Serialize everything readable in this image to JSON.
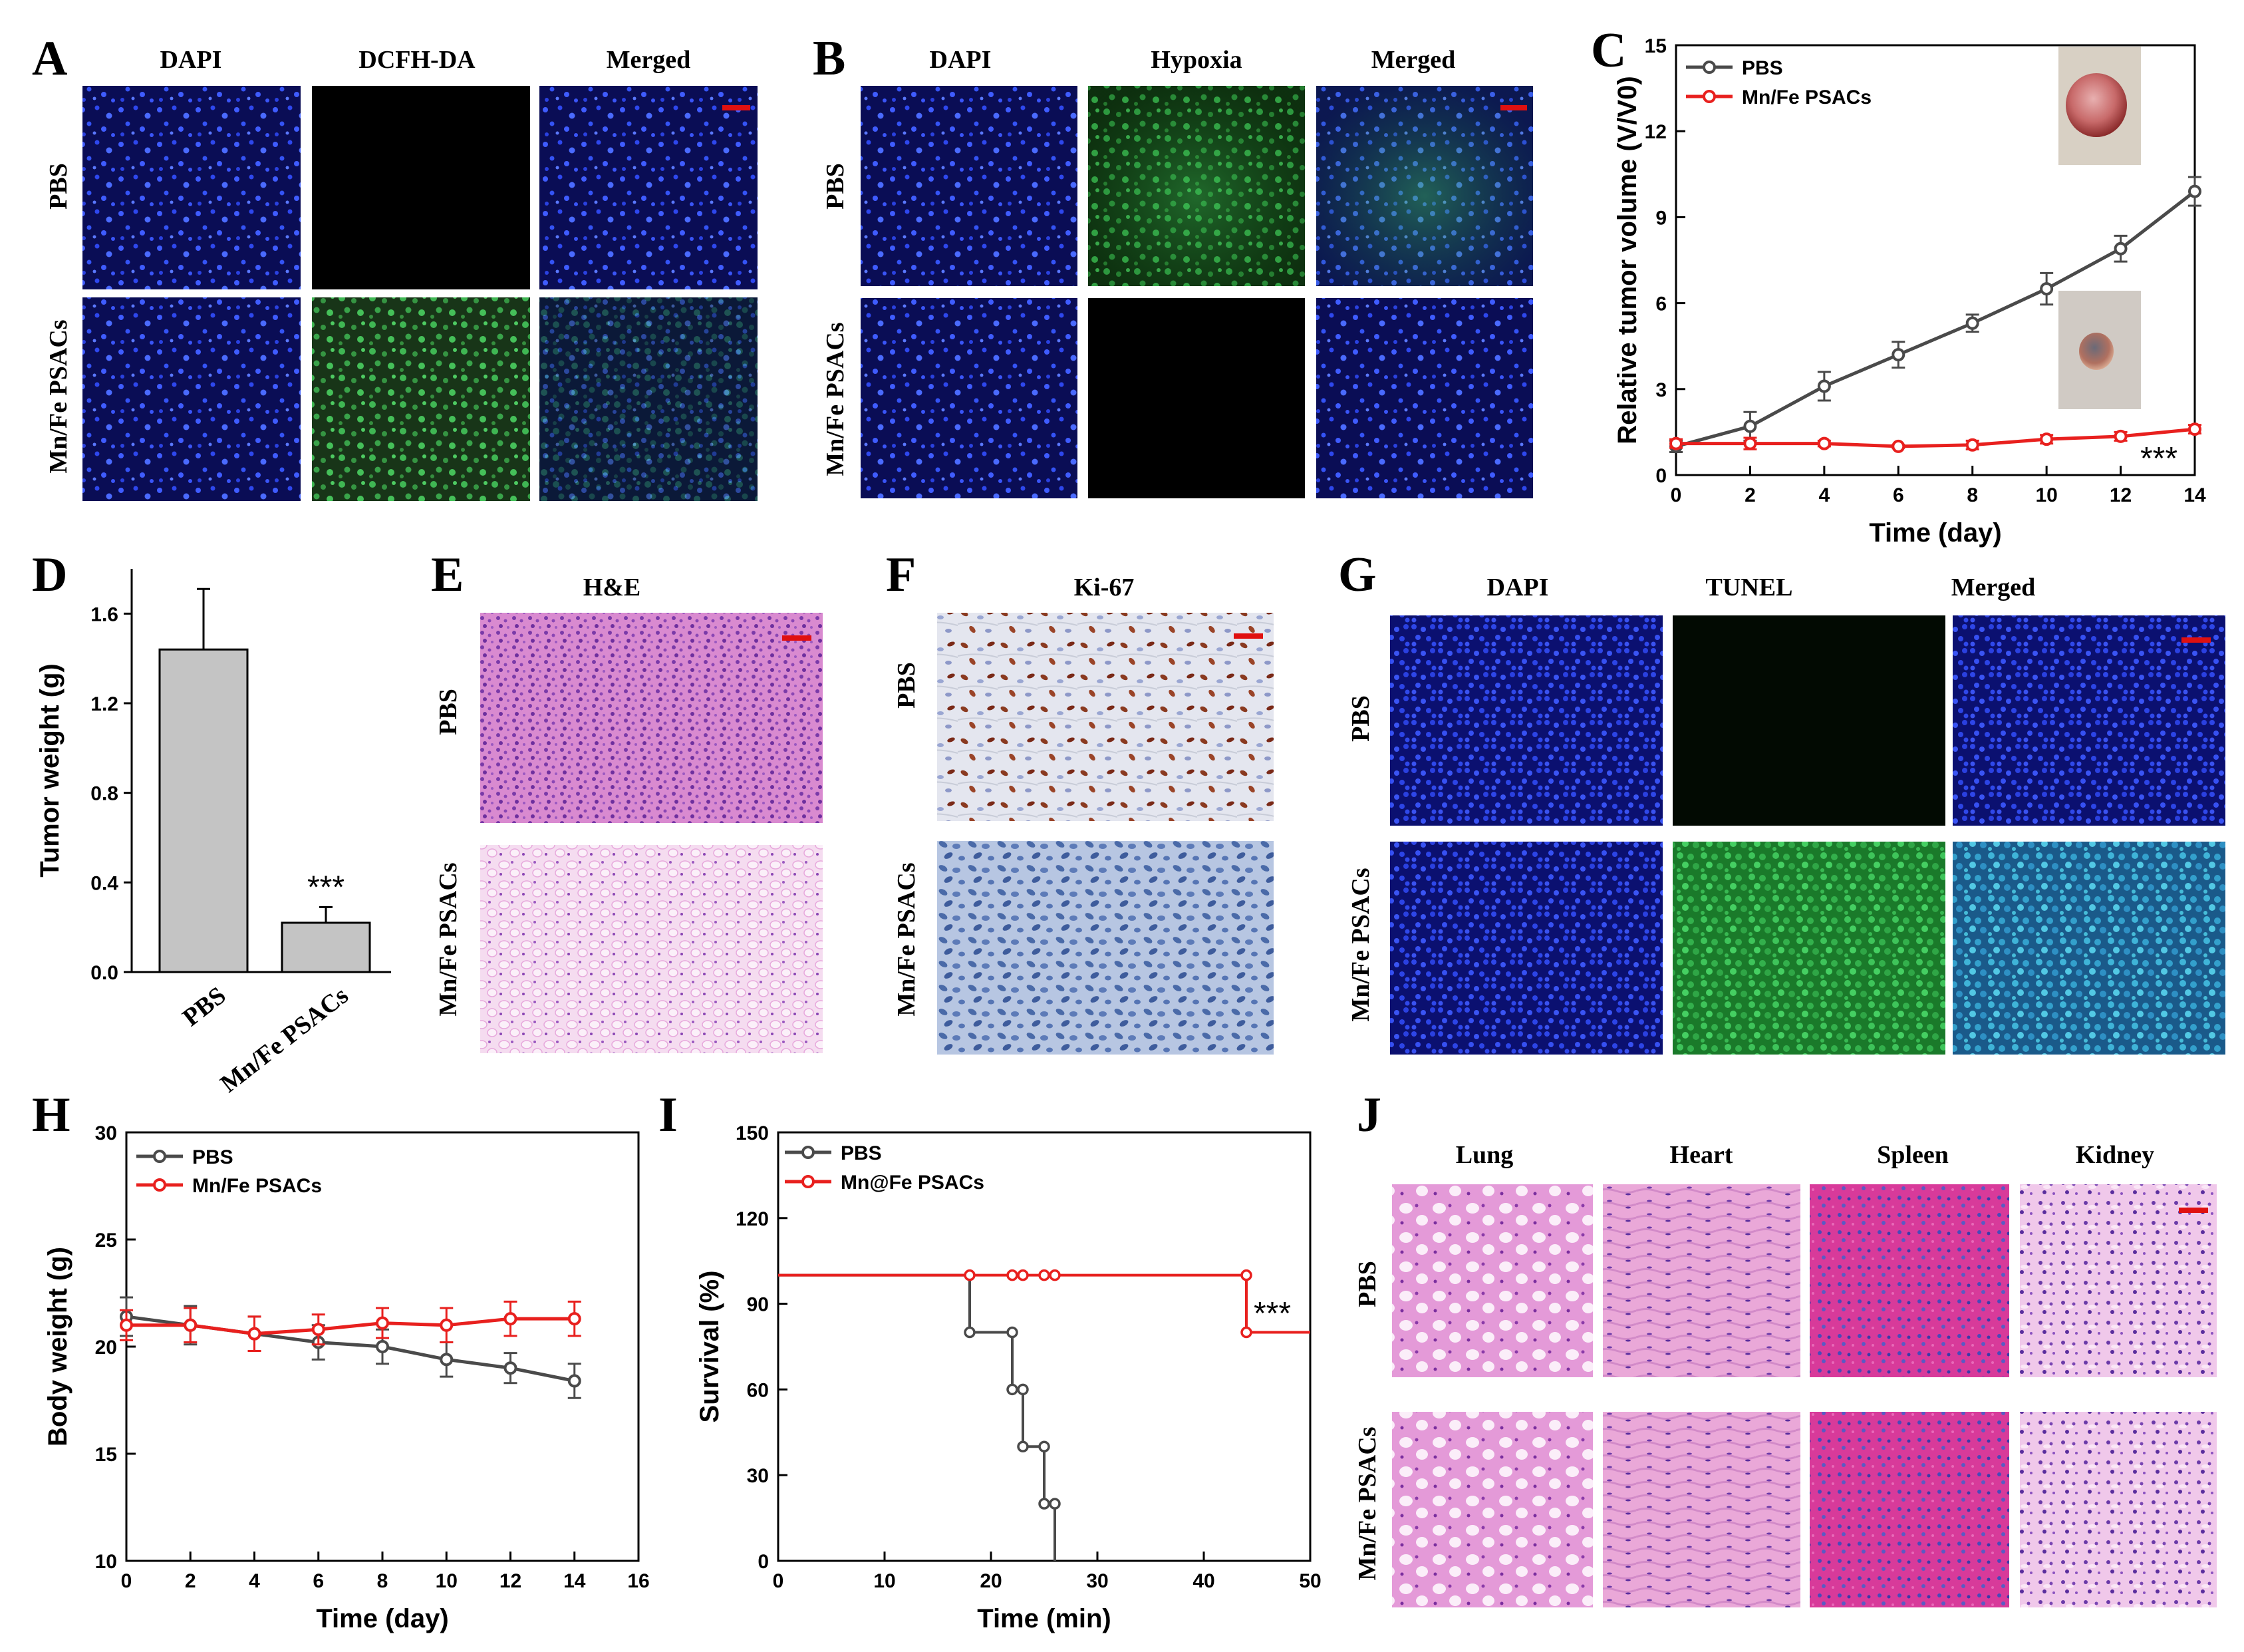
{
  "panels": {
    "A": {
      "label": "A",
      "cols": [
        "DAPI",
        "DCFH-DA",
        "Merged"
      ],
      "rows": [
        "PBS",
        "Mn/Fe PSACs"
      ]
    },
    "B": {
      "label": "B",
      "cols": [
        "DAPI",
        "Hypoxia",
        "Merged"
      ],
      "rows": [
        "PBS",
        "Mn/Fe PSACs"
      ]
    },
    "D": {
      "label": "D"
    },
    "E": {
      "label": "E",
      "title": "H&E",
      "rows": [
        "PBS",
        "Mn/Fe PSACs"
      ]
    },
    "F": {
      "label": "F",
      "title": "Ki-67",
      "rows": [
        "PBS",
        "Mn/Fe PSACs"
      ]
    },
    "G": {
      "label": "G",
      "cols": [
        "DAPI",
        "TUNEL",
        "Merged"
      ],
      "rows": [
        "PBS",
        "Mn/Fe PSACs"
      ]
    },
    "J": {
      "label": "J",
      "cols": [
        "Lung",
        "Heart",
        "Spleen",
        "Kidney"
      ],
      "rows": [
        "PBS",
        "Mn/Fe PSACs"
      ]
    }
  },
  "colors": {
    "pbs": "#4a4a4a",
    "treat": "#e8201e",
    "scale": "#e01010",
    "bar": "#c4c4c4"
  },
  "chart_data": [
    {
      "id": "C",
      "panel": "C",
      "type": "line",
      "xlabel": "Time (day)",
      "ylabel": "Relative tumor volume (V/V0)",
      "xlim": [
        0,
        14
      ],
      "ylim": [
        0,
        15
      ],
      "xticks": [
        0,
        2,
        4,
        6,
        8,
        10,
        12,
        14
      ],
      "yticks": [
        0,
        3,
        6,
        9,
        12,
        15
      ],
      "annotation": "***",
      "legend_position": "top-left",
      "series": [
        {
          "name": "PBS",
          "x": [
            0,
            2,
            4,
            6,
            8,
            10,
            12,
            14
          ],
          "y": [
            1.0,
            1.7,
            3.1,
            4.2,
            5.3,
            6.5,
            7.9,
            9.9
          ],
          "err": [
            0.2,
            0.5,
            0.5,
            0.45,
            0.3,
            0.55,
            0.45,
            0.5
          ]
        },
        {
          "name": "Mn/Fe PSACs",
          "x": [
            0,
            2,
            4,
            6,
            8,
            10,
            12,
            14
          ],
          "y": [
            1.1,
            1.1,
            1.1,
            1.0,
            1.05,
            1.25,
            1.35,
            1.6
          ],
          "err": [
            0.15,
            0.2,
            0.1,
            0.05,
            0.15,
            0.15,
            0.15,
            0.15
          ]
        }
      ]
    },
    {
      "id": "D",
      "panel": "D",
      "type": "bar",
      "xlabel": "",
      "ylabel": "Tumor weight (g)",
      "categories": [
        "PBS",
        "Mn/Fe PSACs"
      ],
      "values": [
        1.44,
        0.22
      ],
      "err": [
        0.27,
        0.07
      ],
      "ylim": [
        0,
        1.8
      ],
      "yticks": [
        0.0,
        0.4,
        0.8,
        1.2,
        1.6
      ],
      "annotation": "***"
    },
    {
      "id": "H",
      "panel": "H",
      "type": "line",
      "xlabel": "Time (day)",
      "ylabel": "Body weight (g)",
      "xlim": [
        0,
        16
      ],
      "ylim": [
        10,
        30
      ],
      "xticks": [
        0,
        2,
        4,
        6,
        8,
        10,
        12,
        14,
        16
      ],
      "yticks": [
        10,
        15,
        20,
        25,
        30
      ],
      "legend_position": "top-left",
      "series": [
        {
          "name": "PBS",
          "x": [
            0,
            2,
            4,
            6,
            8,
            10,
            12,
            14
          ],
          "y": [
            21.4,
            21.0,
            20.6,
            20.2,
            20.0,
            19.4,
            19.0,
            18.4
          ],
          "err": [
            0.9,
            0.9,
            0.8,
            0.8,
            0.8,
            0.8,
            0.7,
            0.8
          ]
        },
        {
          "name": "Mn/Fe PSACs",
          "x": [
            0,
            2,
            4,
            6,
            8,
            10,
            12,
            14
          ],
          "y": [
            21.0,
            21.0,
            20.6,
            20.8,
            21.1,
            21.0,
            21.3,
            21.3
          ],
          "err": [
            0.7,
            0.8,
            0.8,
            0.7,
            0.7,
            0.8,
            0.8,
            0.8
          ]
        }
      ]
    },
    {
      "id": "I",
      "panel": "I",
      "type": "line",
      "xlabel": "Time (min)",
      "ylabel": "Survival (%)",
      "xlim": [
        0,
        50
      ],
      "ylim": [
        0,
        150
      ],
      "xticks": [
        0,
        10,
        20,
        30,
        40,
        50
      ],
      "yticks": [
        0,
        30,
        60,
        90,
        120,
        150
      ],
      "annotation": "***",
      "legend_position": "top-left",
      "series": [
        {
          "name": "PBS",
          "steps": [
            [
              0,
              100
            ],
            [
              18,
              100
            ],
            [
              18,
              80
            ],
            [
              22,
              80
            ],
            [
              22,
              60
            ],
            [
              23,
              60
            ],
            [
              23,
              40
            ],
            [
              25,
              40
            ],
            [
              25,
              20
            ],
            [
              26,
              20
            ],
            [
              26,
              0
            ]
          ],
          "markers": [
            [
              18,
              80
            ],
            [
              22,
              80
            ],
            [
              22,
              60
            ],
            [
              23,
              60
            ],
            [
              23,
              40
            ],
            [
              25,
              40
            ],
            [
              25,
              20
            ],
            [
              26,
              20
            ]
          ]
        },
        {
          "name": "Mn@Fe PSACs",
          "steps": [
            [
              0,
              100
            ],
            [
              44,
              100
            ],
            [
              44,
              80
            ],
            [
              50,
              80
            ]
          ],
          "markers": [
            [
              18,
              100
            ],
            [
              22,
              100
            ],
            [
              23,
              100
            ],
            [
              25,
              100
            ],
            [
              26,
              100
            ],
            [
              44,
              100
            ],
            [
              44,
              80
            ]
          ]
        }
      ]
    }
  ]
}
